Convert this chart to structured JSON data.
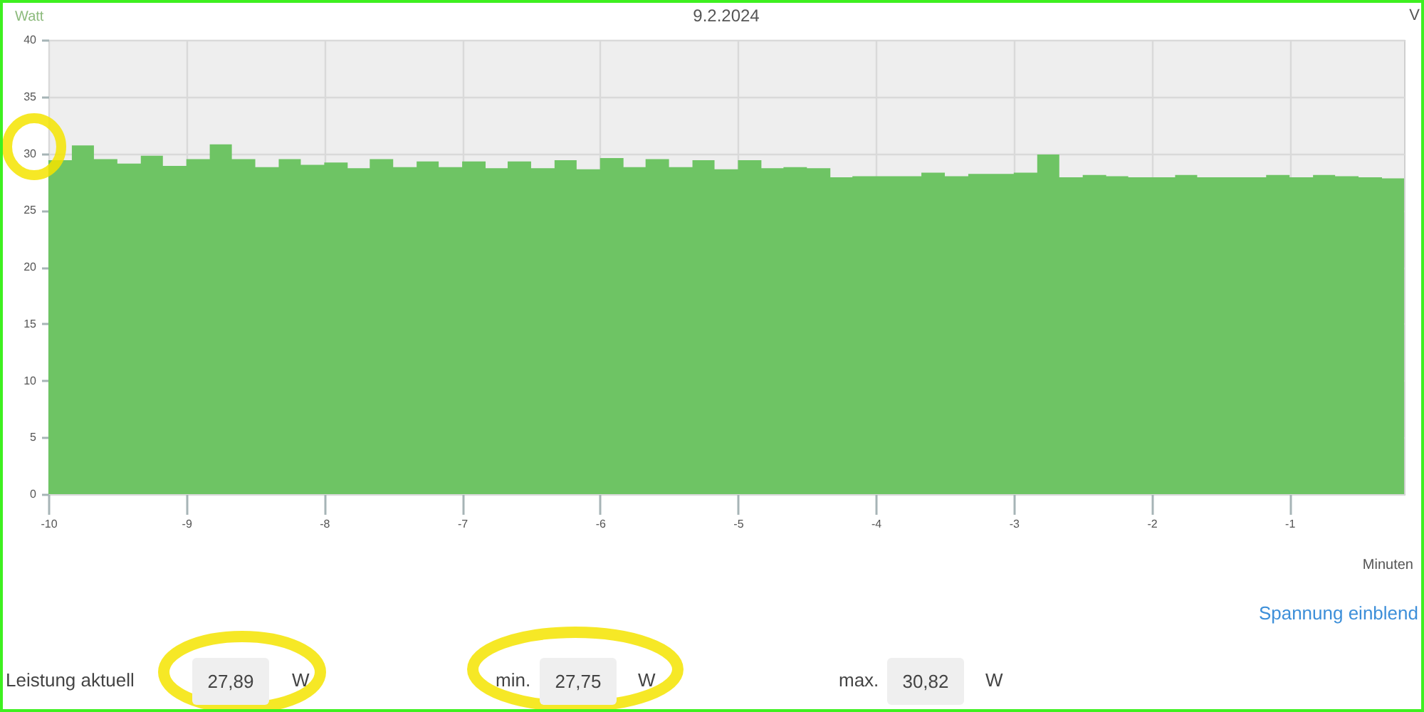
{
  "chart_data": {
    "type": "area",
    "title": "9.2.2024",
    "xlabel": "Minuten",
    "ylabel": "Watt",
    "y2label": "V",
    "x": [
      -10,
      -9.83,
      -9.83,
      -9.67,
      -9.67,
      -9.5,
      -9.5,
      -9.33,
      -9.33,
      -9.17,
      -9.17,
      -9,
      -9,
      -8.83,
      -8.83,
      -8.67,
      -8.67,
      -8.5,
      -8.5,
      -8.33,
      -8.33,
      -8.17,
      -8.17,
      -8,
      -8,
      -7.83,
      -7.83,
      -7.67,
      -7.67,
      -7.5,
      -7.5,
      -7.33,
      -7.33,
      -7.17,
      -7.17,
      -7,
      -7,
      -6.83,
      -6.83,
      -6.67,
      -6.67,
      -6.5,
      -6.5,
      -6.33,
      -6.33,
      -6.17,
      -6.17,
      -6,
      -6,
      -5.83,
      -5.83,
      -5.67,
      -5.67,
      -5.5,
      -5.5,
      -5.33,
      -5.33,
      -5.17,
      -5.17,
      -5,
      -5,
      -4.83,
      -4.83,
      -4.67,
      -4.67,
      -4.5,
      -4.5,
      -4.33,
      -4.33,
      -4.17,
      -4.17,
      -4,
      -4,
      -3.83,
      -3.83,
      -3.67,
      -3.67,
      -3.5,
      -3.5,
      -3.33,
      -3.33,
      -3.17,
      -3.17,
      -3,
      -3,
      -2.83,
      -2.83,
      -2.67,
      -2.67,
      -2.5,
      -2.5,
      -2.33,
      -2.33,
      -2.17,
      -2.17,
      -2,
      -2,
      -1.83,
      -1.83,
      -1.67,
      -1.67,
      -1.5,
      -1.5,
      -1.33,
      -1.33,
      -1.17,
      -1.17,
      -1,
      -1,
      -0.83,
      -0.83,
      -0.67,
      -0.67,
      -0.5,
      -0.5,
      -0.33,
      -0.33,
      -0.17
    ],
    "values": [
      29.4,
      29.4,
      30.7,
      30.7,
      29.5,
      29.5,
      29.1,
      29.1,
      29.8,
      29.8,
      28.9,
      28.9,
      29.5,
      29.5,
      30.8,
      30.8,
      29.5,
      29.5,
      28.8,
      28.8,
      29.5,
      29.5,
      29.0,
      29.0,
      29.2,
      29.2,
      28.7,
      28.7,
      29.5,
      29.5,
      28.8,
      28.8,
      29.3,
      29.3,
      28.8,
      28.8,
      29.3,
      29.3,
      28.7,
      28.7,
      29.3,
      29.3,
      28.7,
      28.7,
      29.4,
      29.4,
      28.6,
      28.6,
      29.6,
      29.6,
      28.8,
      28.8,
      29.5,
      29.5,
      28.8,
      28.8,
      29.4,
      29.4,
      28.6,
      28.6,
      29.4,
      29.4,
      28.7,
      28.7,
      28.8,
      28.8,
      28.7,
      28.7,
      27.9,
      27.9,
      28.0,
      28.0,
      28.0,
      28.0,
      28.0,
      28.0,
      28.3,
      28.3,
      28.0,
      28.0,
      28.2,
      28.2,
      28.2,
      28.2,
      28.3,
      28.3,
      29.9,
      29.9,
      27.9,
      27.9,
      28.1,
      28.1,
      28.0,
      28.0,
      27.9,
      27.9,
      27.9,
      27.9,
      28.1,
      28.1,
      27.9,
      27.9,
      27.9,
      27.9,
      27.9,
      27.9,
      28.1,
      28.1,
      27.9,
      27.9,
      28.1,
      28.1,
      28.0,
      28.0,
      27.9,
      27.9,
      27.8,
      27.8
    ],
    "color": "#6ec464",
    "xlim": [
      -10,
      -0.17
    ],
    "xticks": [
      -10,
      -9,
      -8,
      -7,
      -6,
      -5,
      -4,
      -3,
      -2,
      -1
    ],
    "ylim": [
      0,
      40
    ],
    "yticks": [
      0,
      5,
      10,
      15,
      20,
      25,
      30,
      35,
      40
    ],
    "grid": true,
    "annotations": [
      "Spannung einblend",
      "Leistung aktuell",
      "27,89",
      "W",
      "min.",
      "27,75",
      "W",
      "max.",
      "30,82",
      "W"
    ]
  }
}
